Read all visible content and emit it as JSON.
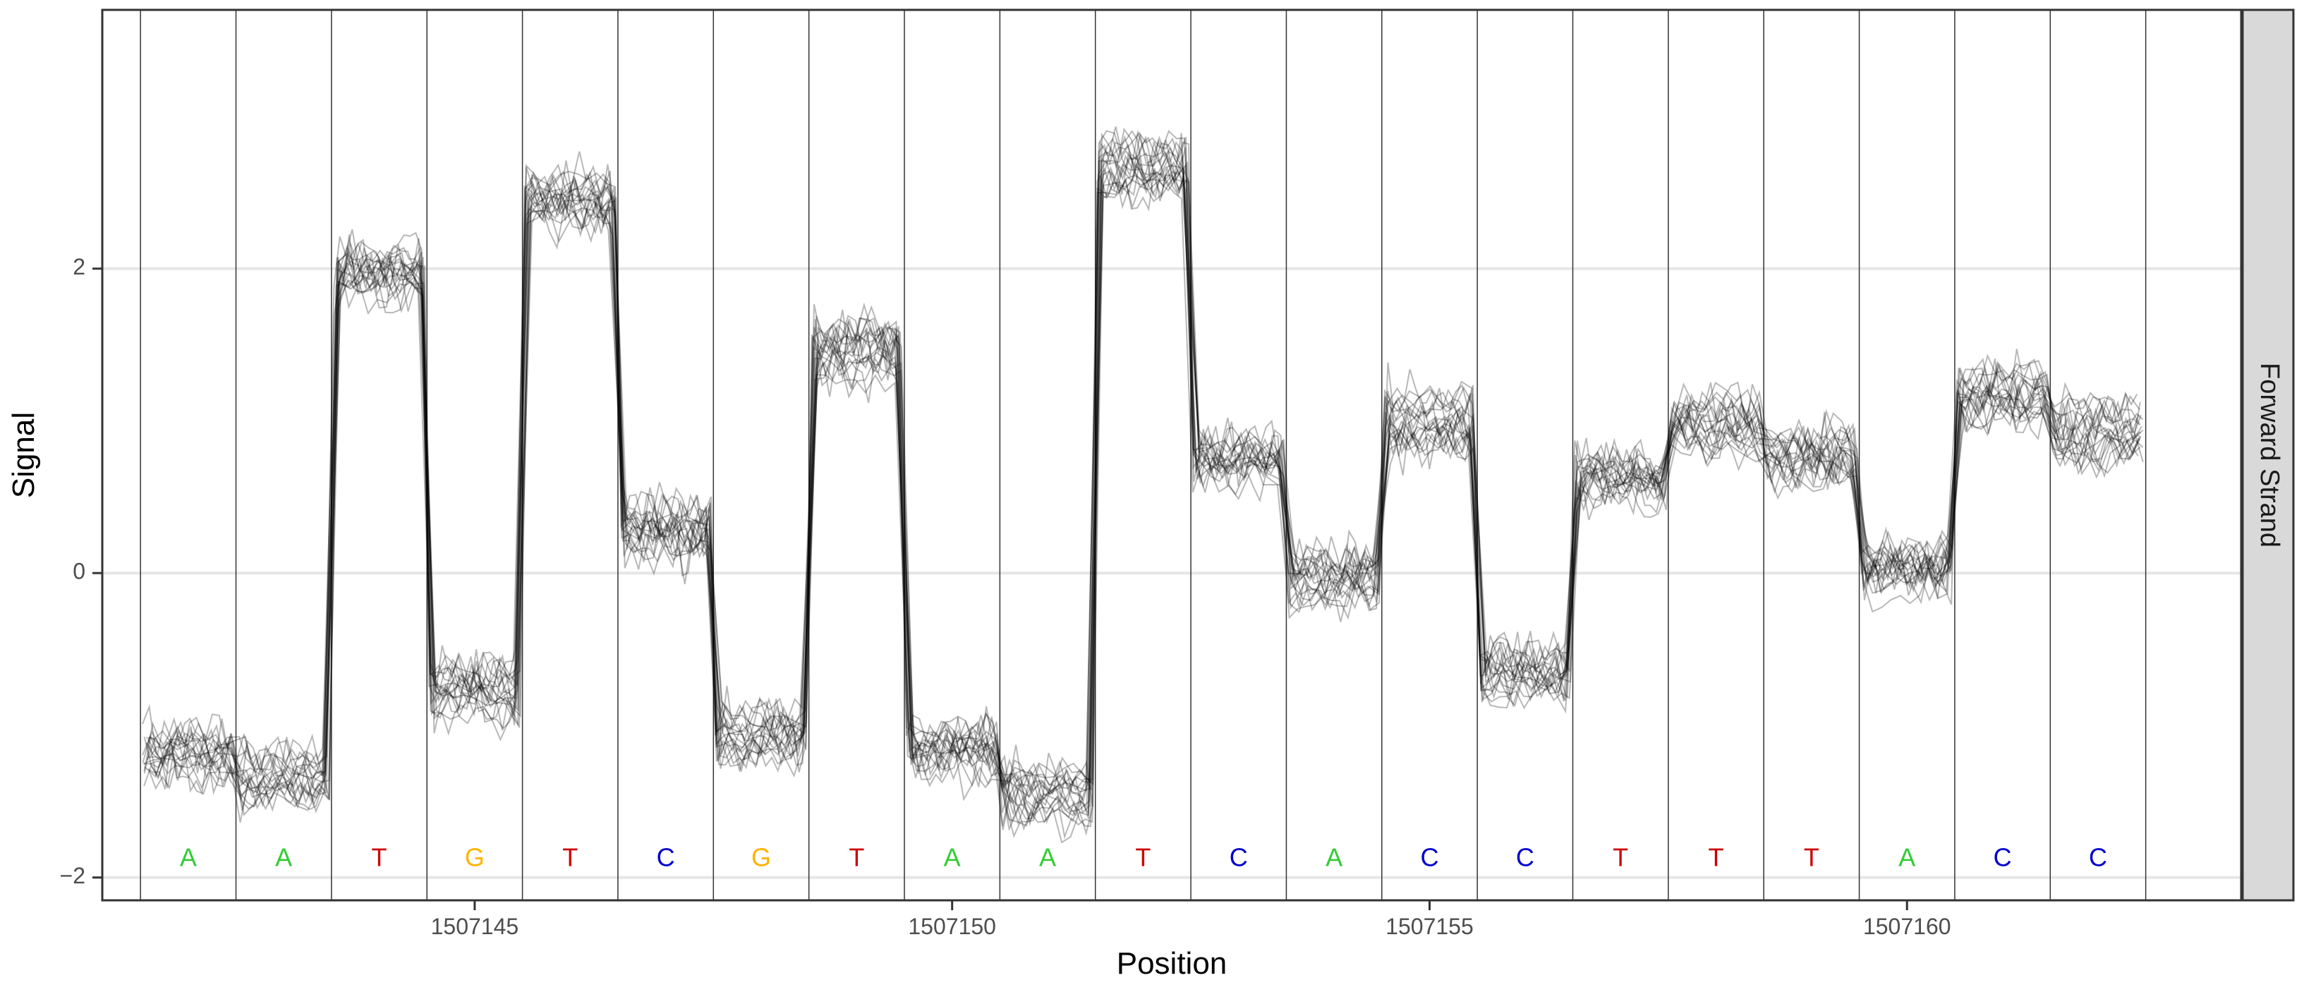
{
  "chart_data": {
    "type": "line",
    "xlabel": "Position",
    "ylabel": "Signal",
    "facet_label": "Forward Strand",
    "xlim": [
      1507141.1,
      1507163.5
    ],
    "ylim": [
      -2.15,
      3.7
    ],
    "x_ticks": [
      1507145,
      1507150,
      1507155,
      1507160
    ],
    "x_tick_labels": [
      "1507145",
      "1507150",
      "1507155",
      "1507160"
    ],
    "y_ticks": [
      -2,
      0,
      2
    ],
    "y_tick_labels": [
      "−2",
      "0",
      "2"
    ],
    "grid": true,
    "bases": [
      {
        "position": 1507142,
        "base": "A",
        "level": -1.2
      },
      {
        "position": 1507143,
        "base": "A",
        "level": -1.35
      },
      {
        "position": 1507144,
        "base": "T",
        "level": 1.95
      },
      {
        "position": 1507145,
        "base": "G",
        "level": -0.8
      },
      {
        "position": 1507146,
        "base": "T",
        "level": 2.45
      },
      {
        "position": 1507147,
        "base": "C",
        "level": 0.3
      },
      {
        "position": 1507148,
        "base": "G",
        "level": -1.05
      },
      {
        "position": 1507149,
        "base": "T",
        "level": 1.45
      },
      {
        "position": 1507150,
        "base": "A",
        "level": -1.15
      },
      {
        "position": 1507151,
        "base": "A",
        "level": -1.45
      },
      {
        "position": 1507152,
        "base": "T",
        "level": 2.65
      },
      {
        "position": 1507153,
        "base": "C",
        "level": 0.75
      },
      {
        "position": 1507154,
        "base": "A",
        "level": -0.05
      },
      {
        "position": 1507155,
        "base": "C",
        "level": 1.0
      },
      {
        "position": 1507156,
        "base": "C",
        "level": -0.65
      },
      {
        "position": 1507157,
        "base": "T",
        "level": 0.6
      },
      {
        "position": 1507158,
        "base": "T",
        "level": 1.0
      },
      {
        "position": 1507159,
        "base": "T",
        "level": 0.8
      },
      {
        "position": 1507160,
        "base": "A",
        "level": 0.0
      },
      {
        "position": 1507161,
        "base": "C",
        "level": 1.2
      },
      {
        "position": 1507162,
        "base": "C",
        "level": 0.95
      }
    ],
    "base_colors": {
      "A": "#33cc33",
      "C": "#0000cc",
      "G": "#ffb300",
      "T": "#cc0000"
    },
    "n_reads": 20,
    "series_color": "#000000"
  }
}
